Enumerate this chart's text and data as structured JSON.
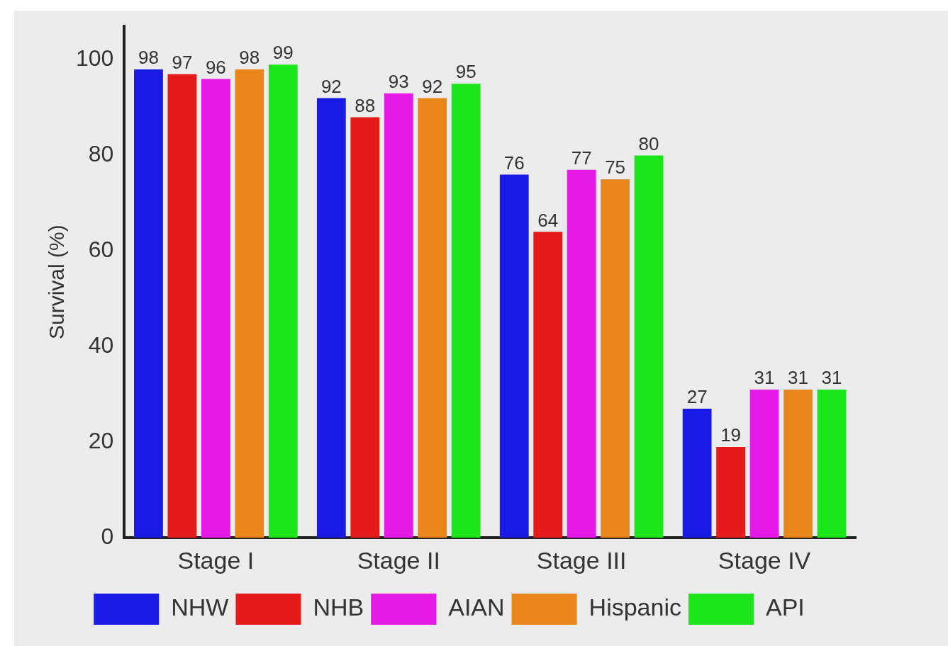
{
  "chart_data": {
    "type": "bar",
    "ylabel": "Survival (%)",
    "categories": [
      "Stage I",
      "Stage II",
      "Stage III",
      "Stage IV"
    ],
    "series": [
      {
        "name": "NHW",
        "color": "#1a1ae6",
        "values": [
          98,
          92,
          76,
          27
        ]
      },
      {
        "name": "NHB",
        "color": "#e61a1a",
        "values": [
          97,
          88,
          64,
          19
        ]
      },
      {
        "name": "AIAN",
        "color": "#e619e6",
        "values": [
          96,
          93,
          77,
          31
        ]
      },
      {
        "name": "Hispanic",
        "color": "#e8861a",
        "values": [
          98,
          92,
          75,
          31
        ]
      },
      {
        "name": "API",
        "color": "#1ae61a",
        "values": [
          99,
          95,
          80,
          31
        ]
      }
    ],
    "ylim": [
      0,
      107
    ],
    "yticks": [
      0,
      20,
      40,
      60,
      80,
      100
    ],
    "grid": false,
    "legend": "bottom",
    "data_labels": true
  }
}
